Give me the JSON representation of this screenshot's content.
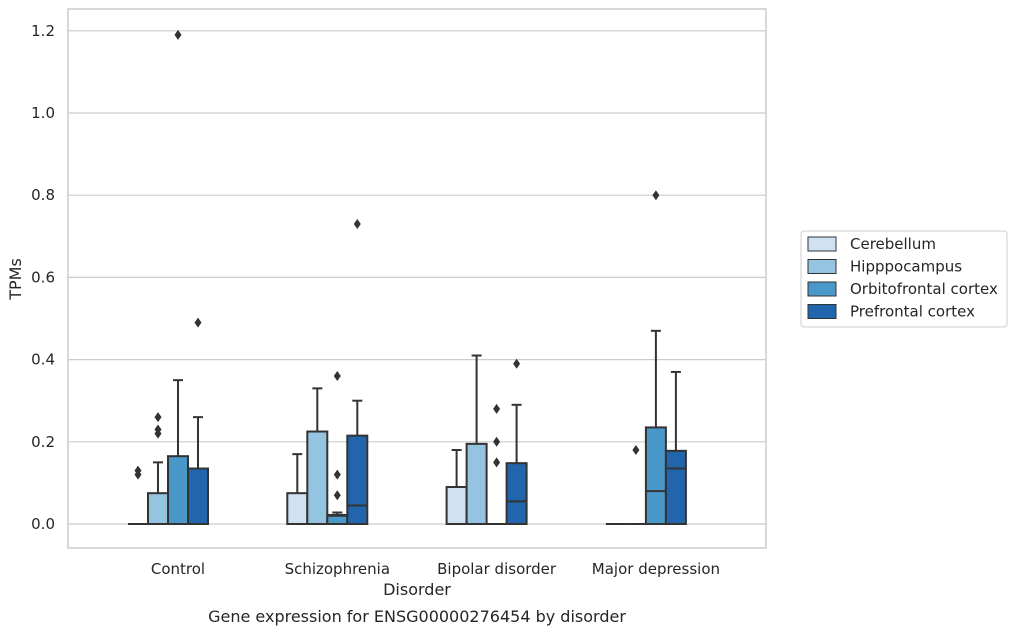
{
  "caption": "Gene expression for ENSG00000276454 by disorder",
  "chart_data": {
    "type": "box",
    "xlabel": "Disorder",
    "ylabel": "TPMs",
    "ylim": [
      -0.058,
      1.25
    ],
    "yticks": [
      0.0,
      0.2,
      0.4,
      0.6,
      0.8,
      1.0,
      1.2
    ],
    "ytick_labels": [
      "0.0",
      "0.2",
      "0.4",
      "0.6",
      "0.8",
      "1.0",
      "1.2"
    ],
    "grid": "horizontal",
    "legend_position": "right",
    "categories": [
      "Control",
      "Schizophrenia",
      "Bipolar disorder",
      "Major depression"
    ],
    "series": [
      {
        "name": "Cerebellum",
        "color": "#d0e1f2",
        "boxes": [
          {
            "whislo": 0,
            "q1": 0,
            "med": 0,
            "q3": 0,
            "whishi": 0,
            "fliers": [
              0.12,
              0.13
            ]
          },
          {
            "whislo": 0,
            "q1": 0,
            "med": 0,
            "q3": 0.075,
            "whishi": 0.17,
            "fliers": []
          },
          {
            "whislo": 0,
            "q1": 0,
            "med": 0,
            "q3": 0.09,
            "whishi": 0.18,
            "fliers": []
          },
          {
            "whislo": 0,
            "q1": 0,
            "med": 0,
            "q3": 0,
            "whishi": 0,
            "fliers": []
          }
        ]
      },
      {
        "name": "Hipppocampus",
        "color": "#94c4df",
        "boxes": [
          {
            "whislo": 0,
            "q1": 0,
            "med": 0,
            "q3": 0.075,
            "whishi": 0.15,
            "fliers": [
              0.22,
              0.23,
              0.26
            ]
          },
          {
            "whislo": 0,
            "q1": 0,
            "med": 0,
            "q3": 0.225,
            "whishi": 0.33,
            "fliers": []
          },
          {
            "whislo": 0,
            "q1": 0,
            "med": 0,
            "q3": 0.195,
            "whishi": 0.41,
            "fliers": []
          },
          {
            "whislo": 0,
            "q1": 0,
            "med": 0,
            "q3": 0,
            "whishi": 0,
            "fliers": [
              0.18
            ]
          }
        ]
      },
      {
        "name": "Orbitofrontal cortex",
        "color": "#4a98c9",
        "boxes": [
          {
            "whislo": 0,
            "q1": 0,
            "med": 0,
            "q3": 0.165,
            "whishi": 0.35,
            "fliers": [
              1.19
            ]
          },
          {
            "whislo": 0,
            "q1": 0,
            "med": 0.02,
            "q3": 0.022,
            "whishi": 0.028,
            "fliers": [
              0.07,
              0.12,
              0.36
            ]
          },
          {
            "whislo": 0,
            "q1": 0,
            "med": 0,
            "q3": 0,
            "whishi": 0,
            "fliers": [
              0.15,
              0.2,
              0.28
            ]
          },
          {
            "whislo": 0,
            "q1": 0,
            "med": 0.08,
            "q3": 0.235,
            "whishi": 0.47,
            "fliers": [
              0.8
            ]
          }
        ]
      },
      {
        "name": "Prefrontal cortex",
        "color": "#2166ac",
        "boxes": [
          {
            "whislo": 0,
            "q1": 0,
            "med": 0,
            "q3": 0.135,
            "whishi": 0.26,
            "fliers": [
              0.49
            ]
          },
          {
            "whislo": 0,
            "q1": 0,
            "med": 0.045,
            "q3": 0.215,
            "whishi": 0.3,
            "fliers": [
              0.73
            ]
          },
          {
            "whislo": 0,
            "q1": 0,
            "med": 0.055,
            "q3": 0.148,
            "whishi": 0.29,
            "fliers": [
              0.39
            ]
          },
          {
            "whislo": 0,
            "q1": 0,
            "med": 0.135,
            "q3": 0.178,
            "whishi": 0.37,
            "fliers": []
          }
        ]
      }
    ]
  }
}
